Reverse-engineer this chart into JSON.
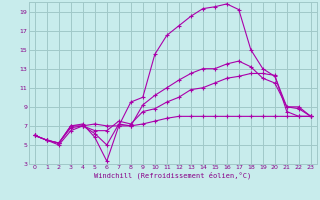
{
  "title": "",
  "xlabel": "Windchill (Refroidissement éolien,°C)",
  "ylabel": "",
  "bg_color": "#c8ecec",
  "grid_color": "#a0c8c8",
  "line_color": "#aa00aa",
  "text_color": "#880088",
  "xlim": [
    -0.5,
    23.5
  ],
  "ylim": [
    3,
    20
  ],
  "yticks": [
    3,
    5,
    7,
    9,
    11,
    13,
    15,
    17,
    19
  ],
  "xticks": [
    0,
    1,
    2,
    3,
    4,
    5,
    6,
    7,
    8,
    9,
    10,
    11,
    12,
    13,
    14,
    15,
    16,
    17,
    18,
    19,
    20,
    21,
    22,
    23
  ],
  "line1_x": [
    0,
    1,
    2,
    3,
    4,
    5,
    6,
    7,
    8,
    9,
    10,
    11,
    12,
    13,
    14,
    15,
    16,
    17,
    18,
    19,
    20,
    21,
    22,
    23
  ],
  "line1_y": [
    6.0,
    5.5,
    5.2,
    7.0,
    7.2,
    5.8,
    3.3,
    7.0,
    9.5,
    10.0,
    14.5,
    16.5,
    17.5,
    18.5,
    19.3,
    19.5,
    19.8,
    19.2,
    15.0,
    13.0,
    12.2,
    9.0,
    9.0,
    8.0
  ],
  "line2_x": [
    0,
    1,
    2,
    3,
    4,
    5,
    6,
    7,
    8,
    9,
    10,
    11,
    12,
    13,
    14,
    15,
    16,
    17,
    18,
    19,
    20,
    21,
    22,
    23
  ],
  "line2_y": [
    6.0,
    5.5,
    5.2,
    7.0,
    7.0,
    6.2,
    5.0,
    7.2,
    7.0,
    9.2,
    10.2,
    11.0,
    11.8,
    12.5,
    13.0,
    13.0,
    13.5,
    13.8,
    13.2,
    12.0,
    11.5,
    9.0,
    8.8,
    8.0
  ],
  "line3_x": [
    0,
    1,
    2,
    3,
    4,
    5,
    6,
    7,
    8,
    9,
    10,
    11,
    12,
    13,
    14,
    15,
    16,
    17,
    18,
    19,
    20,
    21,
    22,
    23
  ],
  "line3_y": [
    6.0,
    5.5,
    5.2,
    6.8,
    7.0,
    6.5,
    6.5,
    7.5,
    7.2,
    8.5,
    8.8,
    9.5,
    10.0,
    10.8,
    11.0,
    11.5,
    12.0,
    12.2,
    12.5,
    12.5,
    12.3,
    8.5,
    8.0,
    8.0
  ],
  "line4_x": [
    0,
    1,
    2,
    3,
    4,
    5,
    6,
    7,
    8,
    9,
    10,
    11,
    12,
    13,
    14,
    15,
    16,
    17,
    18,
    19,
    20,
    21,
    22,
    23
  ],
  "line4_y": [
    6.0,
    5.5,
    5.0,
    6.5,
    7.0,
    7.2,
    7.0,
    7.0,
    7.0,
    7.2,
    7.5,
    7.8,
    8.0,
    8.0,
    8.0,
    8.0,
    8.0,
    8.0,
    8.0,
    8.0,
    8.0,
    8.0,
    8.0,
    8.0
  ]
}
